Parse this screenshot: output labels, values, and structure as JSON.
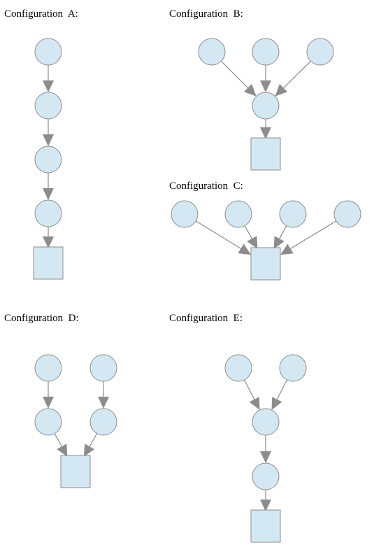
{
  "colors": {
    "node_fill": "#d4e8f4",
    "node_stroke": "#8c8c8c",
    "arrow": "#8c8c8c",
    "text": "#000000"
  },
  "configurations": [
    {
      "id": "A",
      "label": "Configuration  A:"
    },
    {
      "id": "B",
      "label": "Configuration  B:"
    },
    {
      "id": "C",
      "label": "Configuration  C:"
    },
    {
      "id": "D",
      "label": "Configuration  D:"
    },
    {
      "id": "E",
      "label": "Configuration  E:"
    }
  ]
}
